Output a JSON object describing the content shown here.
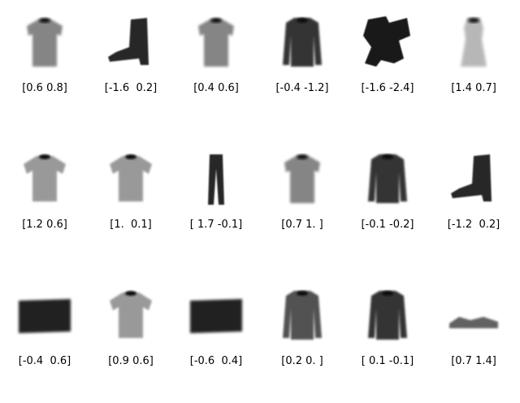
{
  "panels": [
    {
      "label": "[0.6 0.8]",
      "item": "shirt"
    },
    {
      "label": "[-1.6  0.2]",
      "item": "ankle-boot"
    },
    {
      "label": "[0.4 0.6]",
      "item": "shirt"
    },
    {
      "label": "[-0.4 -1.2]",
      "item": "pullover"
    },
    {
      "label": "[-1.6 -2.4]",
      "item": "distorted-item"
    },
    {
      "label": "[1.4 0.7]",
      "item": "dress"
    },
    {
      "label": "[1.2 0.6]",
      "item": "tshirt"
    },
    {
      "label": "[1.  0.1]",
      "item": "tshirt"
    },
    {
      "label": "[ 1.7 -0.1]",
      "item": "trouser"
    },
    {
      "label": "[0.7 1. ]",
      "item": "shirt"
    },
    {
      "label": "[-0.1 -0.2]",
      "item": "pullover"
    },
    {
      "label": "[-1.2  0.2]",
      "item": "ankle-boot"
    },
    {
      "label": "[-0.4  0.6]",
      "item": "bag"
    },
    {
      "label": "[0.9 0.6]",
      "item": "tshirt"
    },
    {
      "label": "[-0.6  0.4]",
      "item": "bag"
    },
    {
      "label": "[0.2 0. ]",
      "item": "coat"
    },
    {
      "label": "[ 0.1 -0.1]",
      "item": "pullover"
    },
    {
      "label": "[0.7 1.4]",
      "item": "sandal"
    }
  ]
}
